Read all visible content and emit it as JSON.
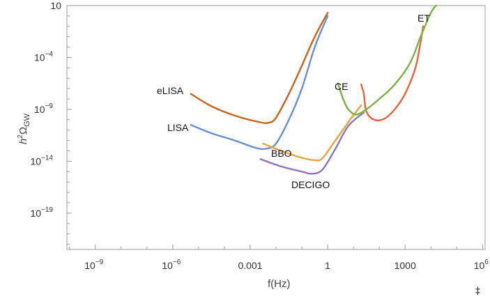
{
  "chart_data": {
    "type": "line",
    "xlabel": "f(Hz)",
    "ylabel": "h²Ω_GW",
    "ylabel_parts": {
      "h": "h",
      "sup": "2",
      "omega": "Ω",
      "sub": "GW"
    },
    "x_scale": "log",
    "y_scale": "log",
    "xlim_log10": [
      -10.1,
      6.1
    ],
    "ylim_log10": [
      -22.5,
      1.0
    ],
    "x_ticks": [
      {
        "log10": -9,
        "base": "10",
        "exp": "−9"
      },
      {
        "log10": -6,
        "base": "10",
        "exp": "−6"
      },
      {
        "log10": -3,
        "base": "0.001",
        "exp": ""
      },
      {
        "log10": 0,
        "base": "1",
        "exp": ""
      },
      {
        "log10": 3,
        "base": "1000",
        "exp": ""
      },
      {
        "log10": 6,
        "base": "10",
        "exp": "6"
      }
    ],
    "y_ticks": [
      {
        "log10": 1,
        "base": "10",
        "exp": ""
      },
      {
        "log10": -4,
        "base": "10",
        "exp": "−4"
      },
      {
        "log10": -9,
        "base": "10",
        "exp": "−9"
      },
      {
        "log10": -14,
        "base": "10",
        "exp": "−14"
      },
      {
        "log10": -19,
        "base": "10",
        "exp": "−19"
      }
    ],
    "grid": false,
    "legend": "none (curves labeled directly)",
    "series": [
      {
        "name": "eLISA",
        "color": "#c8641e",
        "points_log10": [
          [
            -5.3,
            -7.5
          ],
          [
            -4.5,
            -8.7
          ],
          [
            -3.6,
            -9.6
          ],
          [
            -2.7,
            -10.2
          ],
          [
            -2.3,
            -10.3
          ],
          [
            -2.0,
            -9.8
          ],
          [
            -1.5,
            -7.5
          ],
          [
            -1.0,
            -4.8
          ],
          [
            -0.5,
            -2.0
          ],
          [
            0.0,
            0.3
          ]
        ]
      },
      {
        "name": "LISA",
        "color": "#6a8fc8",
        "points_log10": [
          [
            -5.3,
            -10.5
          ],
          [
            -4.5,
            -11.3
          ],
          [
            -3.6,
            -12.0
          ],
          [
            -2.8,
            -12.7
          ],
          [
            -2.4,
            -12.8
          ],
          [
            -2.0,
            -12.3
          ],
          [
            -1.5,
            -10.0
          ],
          [
            -1.0,
            -7.0
          ],
          [
            -0.5,
            -3.0
          ],
          [
            0.0,
            0.0
          ]
        ]
      },
      {
        "name": "BBO",
        "color": "#e3a53c",
        "points_log10": [
          [
            -2.5,
            -12.3
          ],
          [
            -1.8,
            -13.0
          ],
          [
            -1.1,
            -13.6
          ],
          [
            -0.5,
            -13.9
          ],
          [
            -0.2,
            -13.7
          ],
          [
            0.3,
            -12.0
          ],
          [
            0.9,
            -9.9
          ],
          [
            1.3,
            -8.6
          ]
        ]
      },
      {
        "name": "DECIGO",
        "color": "#8b78b8",
        "points_log10": [
          [
            -2.6,
            -13.8
          ],
          [
            -1.8,
            -14.5
          ],
          [
            -1.0,
            -15.0
          ],
          [
            -0.6,
            -15.2
          ],
          [
            -0.2,
            -14.8
          ],
          [
            0.3,
            -12.8
          ],
          [
            0.8,
            -10.6
          ],
          [
            1.4,
            -9.3
          ]
        ]
      },
      {
        "name": "CE",
        "color": "#e8643c",
        "points_log10": [
          [
            1.3,
            -6.6
          ],
          [
            1.4,
            -7.5
          ],
          [
            1.5,
            -9.2
          ],
          [
            1.8,
            -10.0
          ],
          [
            2.2,
            -9.9
          ],
          [
            2.6,
            -9.0
          ],
          [
            3.0,
            -7.5
          ],
          [
            3.4,
            -5.0
          ],
          [
            3.6,
            -2.5
          ],
          [
            3.7,
            -1.0
          ]
        ]
      },
      {
        "name": "ET",
        "color": "#7ab340",
        "points_log10": [
          [
            0.4,
            -6.5
          ],
          [
            0.6,
            -8.0
          ],
          [
            0.8,
            -9.0
          ],
          [
            1.1,
            -9.5
          ],
          [
            1.5,
            -9.0
          ],
          [
            2.0,
            -8.0
          ],
          [
            2.6,
            -6.6
          ],
          [
            3.2,
            -4.5
          ],
          [
            3.6,
            -2.0
          ],
          [
            4.0,
            0.3
          ],
          [
            4.2,
            1.0
          ]
        ]
      }
    ]
  },
  "curve_labels": {
    "eLISA": "eLISA",
    "LISA": "LISA",
    "BBO": "BBO",
    "DECIGO": "DECIGO",
    "CE": "CE",
    "ET": "ET"
  },
  "corner_mark": "‡"
}
